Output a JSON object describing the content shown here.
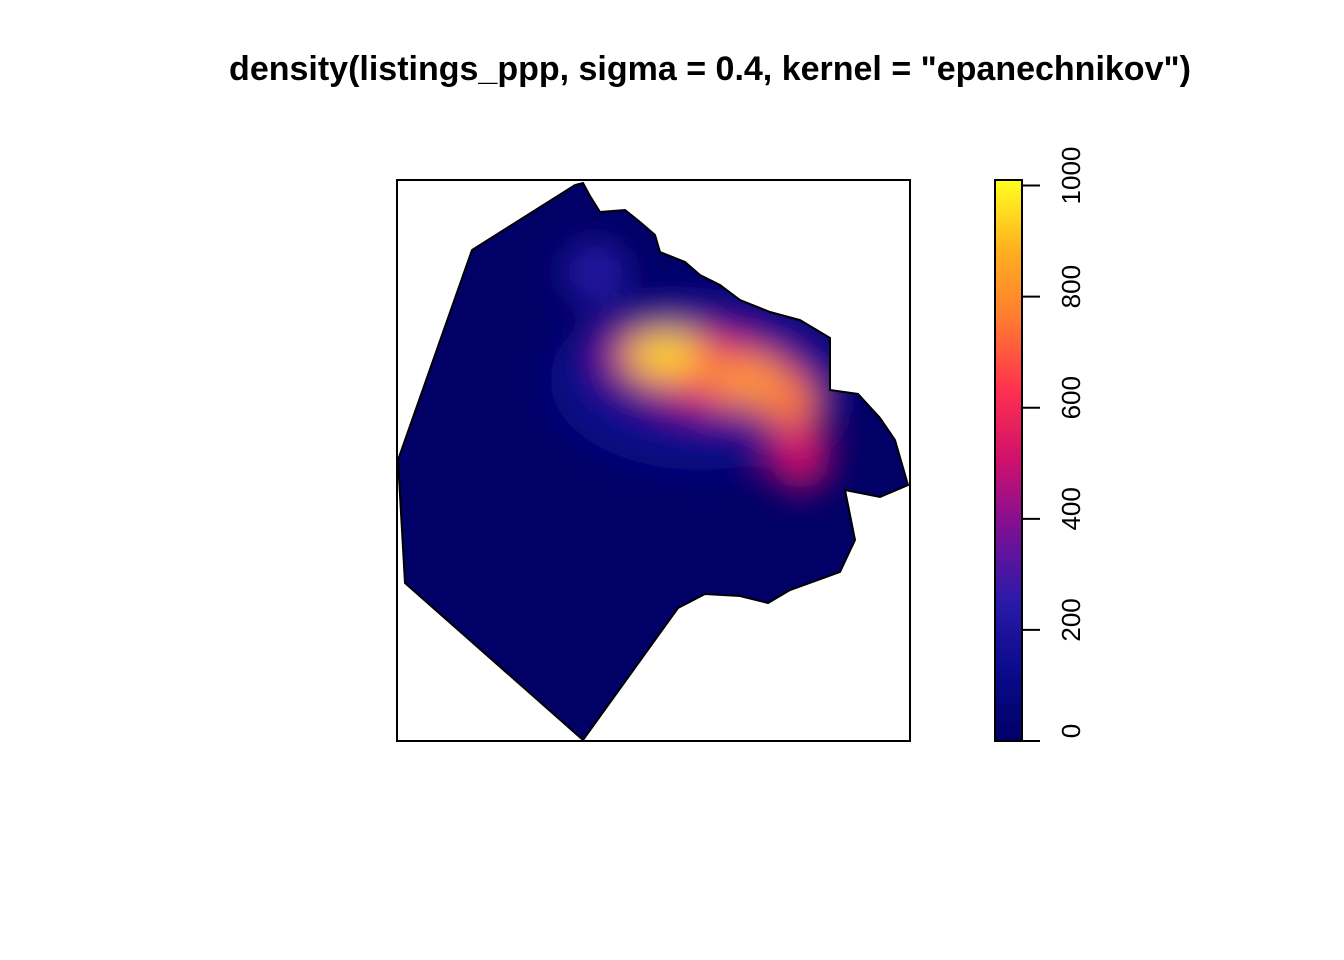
{
  "chart_data": {
    "type": "density",
    "title": "density(listings_ppp, sigma = 0.4, kernel = \"epanechnikov\")",
    "zlim": [
      0,
      1010
    ],
    "zticks": [
      0,
      200,
      400,
      600,
      800,
      1000
    ],
    "colors": [
      "#000066",
      "#0a0a8c",
      "#2a1aa8",
      "#7a0f96",
      "#d0106c",
      "#ff3050",
      "#ff7a30",
      "#ffb020",
      "#ffff20"
    ]
  }
}
